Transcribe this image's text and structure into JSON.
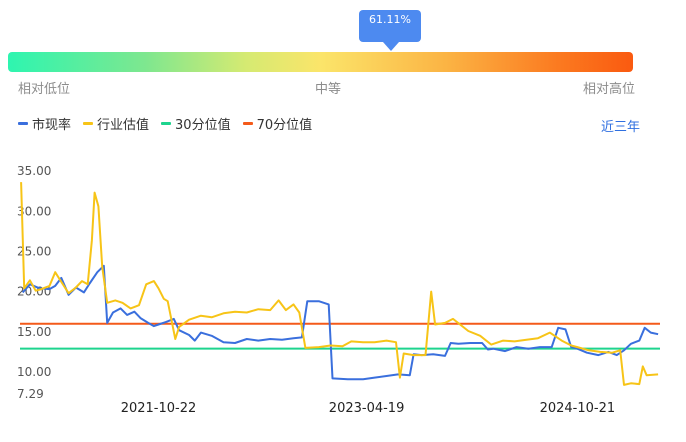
{
  "gauge": {
    "value_label": "61.11%",
    "value_fraction": 0.6111,
    "labels": {
      "low": "相对低位",
      "mid": "中等",
      "high": "相对高位"
    }
  },
  "period_label": "近三年",
  "colors": {
    "market": "#3a6fdd",
    "industry": "#f7c417",
    "p30": "#1ed48e",
    "p70": "#f45a1a",
    "tip": "#4d8af0"
  },
  "chart_data": {
    "type": "line",
    "x_ticks": [
      "2021-10-22",
      "2023-04-19",
      "2024-10-21"
    ],
    "y_ticks": [
      35.0,
      30.0,
      25.0,
      20.0,
      15.0,
      10.0,
      7.29
    ],
    "y_tick_labels": [
      "35.00",
      "30.00",
      "25.00",
      "20.00",
      "15.00",
      "10.00",
      "7.29"
    ],
    "ylim": [
      7.29,
      36.5
    ],
    "legend_position": "top-left",
    "series": [
      {
        "name": "市现率",
        "color_key": "market",
        "points": [
          [
            "2020-11-01",
            19.8
          ],
          [
            "2020-11-20",
            20.8
          ],
          [
            "2020-12-15",
            20.3
          ],
          [
            "2021-01-10",
            20.2
          ],
          [
            "2021-01-25",
            20.6
          ],
          [
            "2021-02-10",
            21.6
          ],
          [
            "2021-03-01",
            19.5
          ],
          [
            "2021-03-20",
            20.4
          ],
          [
            "2021-04-10",
            19.8
          ],
          [
            "2021-04-25",
            20.9
          ],
          [
            "2021-05-15",
            22.3
          ],
          [
            "2021-06-01",
            23.1
          ],
          [
            "2021-06-10",
            16.0
          ],
          [
            "2021-06-25",
            17.3
          ],
          [
            "2021-07-15",
            17.8
          ],
          [
            "2021-08-01",
            17.0
          ],
          [
            "2021-08-20",
            17.4
          ],
          [
            "2021-09-05",
            16.6
          ],
          [
            "2021-09-25",
            16.0
          ],
          [
            "2021-10-10",
            15.6
          ],
          [
            "2021-10-22",
            15.8
          ],
          [
            "2021-11-10",
            16.1
          ],
          [
            "2021-12-01",
            16.5
          ],
          [
            "2021-12-15",
            15.1
          ],
          [
            "2022-01-10",
            14.5
          ],
          [
            "2022-01-25",
            13.8
          ],
          [
            "2022-02-10",
            14.8
          ],
          [
            "2022-03-10",
            14.4
          ],
          [
            "2022-04-10",
            13.6
          ],
          [
            "2022-05-10",
            13.5
          ],
          [
            "2022-06-10",
            14.0
          ],
          [
            "2022-07-10",
            13.8
          ],
          [
            "2022-08-10",
            14.0
          ],
          [
            "2022-09-10",
            13.9
          ],
          [
            "2022-10-10",
            14.1
          ],
          [
            "2022-11-01",
            14.2
          ],
          [
            "2022-11-15",
            18.7
          ],
          [
            "2022-12-15",
            18.7
          ],
          [
            "2023-01-10",
            18.3
          ],
          [
            "2023-01-20",
            9.1
          ],
          [
            "2023-03-01",
            9.0
          ],
          [
            "2023-04-10",
            9.0
          ],
          [
            "2023-05-10",
            9.2
          ],
          [
            "2023-06-10",
            9.4
          ],
          [
            "2023-07-10",
            9.6
          ],
          [
            "2023-08-10",
            9.5
          ],
          [
            "2023-08-20",
            12.1
          ],
          [
            "2023-09-10",
            12.0
          ],
          [
            "2023-10-10",
            12.1
          ],
          [
            "2023-11-10",
            11.9
          ],
          [
            "2023-11-25",
            13.5
          ],
          [
            "2023-12-15",
            13.4
          ],
          [
            "2024-01-15",
            13.5
          ],
          [
            "2024-02-15",
            13.5
          ],
          [
            "2024-03-01",
            12.7
          ],
          [
            "2024-03-15",
            12.8
          ],
          [
            "2024-04-15",
            12.5
          ],
          [
            "2024-05-15",
            13.0
          ],
          [
            "2024-06-15",
            12.8
          ],
          [
            "2024-07-15",
            13.0
          ],
          [
            "2024-08-15",
            13.0
          ],
          [
            "2024-09-01",
            15.4
          ],
          [
            "2024-09-20",
            15.2
          ],
          [
            "2024-10-05",
            13.0
          ],
          [
            "2024-10-21",
            12.8
          ],
          [
            "2024-11-15",
            12.3
          ],
          [
            "2024-12-15",
            12.0
          ],
          [
            "2025-01-10",
            12.4
          ],
          [
            "2025-02-01",
            12.0
          ],
          [
            "2025-02-20",
            12.6
          ],
          [
            "2025-03-10",
            13.4
          ],
          [
            "2025-04-01",
            13.8
          ],
          [
            "2025-04-15",
            15.4
          ],
          [
            "2025-05-01",
            14.8
          ],
          [
            "2025-05-20",
            14.6
          ]
        ]
      },
      {
        "name": "行业估值",
        "color_key": "industry",
        "points": [
          [
            "2020-10-28",
            33.5
          ],
          [
            "2020-11-05",
            20.3
          ],
          [
            "2020-11-20",
            21.3
          ],
          [
            "2020-12-05",
            20.0
          ],
          [
            "2020-12-20",
            20.2
          ],
          [
            "2021-01-10",
            20.6
          ],
          [
            "2021-01-25",
            22.3
          ],
          [
            "2021-02-10",
            21.1
          ],
          [
            "2021-03-01",
            19.7
          ],
          [
            "2021-03-20",
            20.4
          ],
          [
            "2021-04-05",
            21.2
          ],
          [
            "2021-04-20",
            20.8
          ],
          [
            "2021-05-01",
            26.3
          ],
          [
            "2021-05-08",
            32.2
          ],
          [
            "2021-05-18",
            30.5
          ],
          [
            "2021-05-28",
            23.0
          ],
          [
            "2021-06-10",
            18.5
          ],
          [
            "2021-07-01",
            18.8
          ],
          [
            "2021-07-20",
            18.5
          ],
          [
            "2021-08-10",
            17.8
          ],
          [
            "2021-09-01",
            18.2
          ],
          [
            "2021-09-20",
            20.8
          ],
          [
            "2021-10-10",
            21.2
          ],
          [
            "2021-10-22",
            20.3
          ],
          [
            "2021-11-05",
            19.0
          ],
          [
            "2021-11-15",
            18.7
          ],
          [
            "2021-12-05",
            14.0
          ],
          [
            "2021-12-15",
            15.5
          ],
          [
            "2022-01-10",
            16.4
          ],
          [
            "2022-02-10",
            16.9
          ],
          [
            "2022-03-10",
            16.7
          ],
          [
            "2022-04-10",
            17.2
          ],
          [
            "2022-05-10",
            17.4
          ],
          [
            "2022-06-10",
            17.3
          ],
          [
            "2022-07-10",
            17.7
          ],
          [
            "2022-08-10",
            17.6
          ],
          [
            "2022-09-01",
            18.8
          ],
          [
            "2022-09-20",
            17.6
          ],
          [
            "2022-10-10",
            18.3
          ],
          [
            "2022-10-25",
            17.3
          ],
          [
            "2022-11-10",
            12.9
          ],
          [
            "2022-12-15",
            13.0
          ],
          [
            "2023-01-15",
            13.2
          ],
          [
            "2023-02-15",
            13.1
          ],
          [
            "2023-03-10",
            13.7
          ],
          [
            "2023-04-10",
            13.6
          ],
          [
            "2023-05-10",
            13.6
          ],
          [
            "2023-06-10",
            13.8
          ],
          [
            "2023-07-05",
            13.6
          ],
          [
            "2023-07-15",
            9.2
          ],
          [
            "2023-07-25",
            12.2
          ],
          [
            "2023-08-20",
            12.0
          ],
          [
            "2023-09-20",
            12.0
          ],
          [
            "2023-10-05",
            19.9
          ],
          [
            "2023-10-15",
            15.8
          ],
          [
            "2023-11-10",
            16.0
          ],
          [
            "2023-12-01",
            16.5
          ],
          [
            "2024-01-10",
            15.0
          ],
          [
            "2024-02-10",
            14.4
          ],
          [
            "2024-03-10",
            13.3
          ],
          [
            "2024-04-10",
            13.8
          ],
          [
            "2024-05-10",
            13.7
          ],
          [
            "2024-06-10",
            13.9
          ],
          [
            "2024-07-10",
            14.1
          ],
          [
            "2024-08-10",
            14.8
          ],
          [
            "2024-09-10",
            13.8
          ],
          [
            "2024-10-05",
            13.2
          ],
          [
            "2024-10-21",
            13.0
          ],
          [
            "2024-11-20",
            12.6
          ],
          [
            "2024-12-20",
            12.4
          ],
          [
            "2025-01-20",
            12.3
          ],
          [
            "2025-02-10",
            12.6
          ],
          [
            "2025-02-20",
            8.3
          ],
          [
            "2025-03-10",
            8.5
          ],
          [
            "2025-04-01",
            8.4
          ],
          [
            "2025-04-10",
            10.6
          ],
          [
            "2025-04-20",
            9.5
          ],
          [
            "2025-05-20",
            9.6
          ]
        ]
      },
      {
        "name": "30分位值",
        "color_key": "p30",
        "constant": 12.8
      },
      {
        "name": "70分位值",
        "color_key": "p70",
        "constant": 15.9
      }
    ]
  }
}
